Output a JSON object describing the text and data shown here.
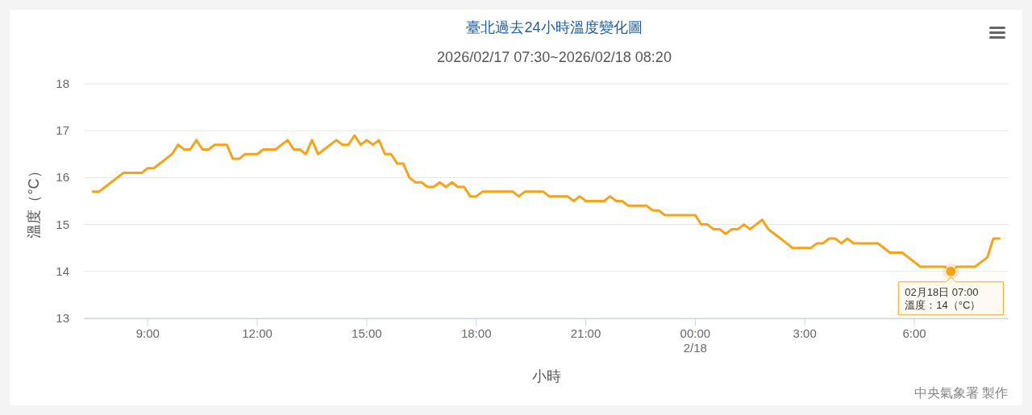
{
  "chart_data": {
    "type": "line",
    "title": "臺北過去24小時溫度變化圖",
    "subtitle": "2026/02/17 07:30~2026/02/18 08:20",
    "xlabel": "小時",
    "ylabel": "溫度（°C）",
    "x": [
      "2026-02-17T07:30",
      "2026-02-17T07:40",
      "2026-02-17T07:50",
      "2026-02-17T08:00",
      "2026-02-17T08:10",
      "2026-02-17T08:20",
      "2026-02-17T08:30",
      "2026-02-17T08:40",
      "2026-02-17T08:50",
      "2026-02-17T09:00",
      "2026-02-17T09:10",
      "2026-02-17T09:20",
      "2026-02-17T09:30",
      "2026-02-17T09:40",
      "2026-02-17T09:50",
      "2026-02-17T10:00",
      "2026-02-17T10:10",
      "2026-02-17T10:20",
      "2026-02-17T10:30",
      "2026-02-17T10:40",
      "2026-02-17T10:50",
      "2026-02-17T11:00",
      "2026-02-17T11:10",
      "2026-02-17T11:20",
      "2026-02-17T11:30",
      "2026-02-17T11:40",
      "2026-02-17T11:50",
      "2026-02-17T12:00",
      "2026-02-17T12:10",
      "2026-02-17T12:20",
      "2026-02-17T12:30",
      "2026-02-17T12:40",
      "2026-02-17T12:50",
      "2026-02-17T13:00",
      "2026-02-17T13:10",
      "2026-02-17T13:20",
      "2026-02-17T13:30",
      "2026-02-17T13:40",
      "2026-02-17T13:50",
      "2026-02-17T14:00",
      "2026-02-17T14:10",
      "2026-02-17T14:20",
      "2026-02-17T14:30",
      "2026-02-17T14:40",
      "2026-02-17T14:50",
      "2026-02-17T15:00",
      "2026-02-17T15:10",
      "2026-02-17T15:20",
      "2026-02-17T15:30",
      "2026-02-17T15:40",
      "2026-02-17T15:50",
      "2026-02-17T16:00",
      "2026-02-17T16:10",
      "2026-02-17T16:20",
      "2026-02-17T16:30",
      "2026-02-17T16:40",
      "2026-02-17T16:50",
      "2026-02-17T17:00",
      "2026-02-17T17:10",
      "2026-02-17T17:20",
      "2026-02-17T17:30",
      "2026-02-17T17:40",
      "2026-02-17T17:50",
      "2026-02-17T18:00",
      "2026-02-17T18:10",
      "2026-02-17T18:20",
      "2026-02-17T18:30",
      "2026-02-17T18:40",
      "2026-02-17T18:50",
      "2026-02-17T19:00",
      "2026-02-17T19:10",
      "2026-02-17T19:20",
      "2026-02-17T19:30",
      "2026-02-17T19:40",
      "2026-02-17T19:50",
      "2026-02-17T20:00",
      "2026-02-17T20:10",
      "2026-02-17T20:20",
      "2026-02-17T20:30",
      "2026-02-17T20:40",
      "2026-02-17T20:50",
      "2026-02-17T21:00",
      "2026-02-17T21:10",
      "2026-02-17T21:20",
      "2026-02-17T21:30",
      "2026-02-17T21:40",
      "2026-02-17T21:50",
      "2026-02-17T22:00",
      "2026-02-17T22:10",
      "2026-02-17T22:20",
      "2026-02-17T22:30",
      "2026-02-17T22:40",
      "2026-02-17T22:50",
      "2026-02-17T23:00",
      "2026-02-17T23:10",
      "2026-02-17T23:20",
      "2026-02-17T23:30",
      "2026-02-17T23:40",
      "2026-02-17T23:50",
      "2026-02-18T00:00",
      "2026-02-18T00:10",
      "2026-02-18T00:20",
      "2026-02-18T00:30",
      "2026-02-18T00:40",
      "2026-02-18T00:50",
      "2026-02-18T01:00",
      "2026-02-18T01:10",
      "2026-02-18T01:20",
      "2026-02-18T01:30",
      "2026-02-18T01:40",
      "2026-02-18T01:50",
      "2026-02-18T02:00",
      "2026-02-18T02:10",
      "2026-02-18T02:20",
      "2026-02-18T02:30",
      "2026-02-18T02:40",
      "2026-02-18T02:50",
      "2026-02-18T03:00",
      "2026-02-18T03:10",
      "2026-02-18T03:20",
      "2026-02-18T03:30",
      "2026-02-18T03:40",
      "2026-02-18T03:50",
      "2026-02-18T04:00",
      "2026-02-18T04:10",
      "2026-02-18T04:20",
      "2026-02-18T04:30",
      "2026-02-18T04:40",
      "2026-02-18T04:50",
      "2026-02-18T05:00",
      "2026-02-18T05:10",
      "2026-02-18T05:20",
      "2026-02-18T05:30",
      "2026-02-18T05:40",
      "2026-02-18T05:50",
      "2026-02-18T06:00",
      "2026-02-18T06:10",
      "2026-02-18T06:20",
      "2026-02-18T06:30",
      "2026-02-18T06:40",
      "2026-02-18T06:50",
      "2026-02-18T07:00",
      "2026-02-18T07:10",
      "2026-02-18T07:20",
      "2026-02-18T07:30",
      "2026-02-18T07:40",
      "2026-02-18T07:50",
      "2026-02-18T08:00",
      "2026-02-18T08:10",
      "2026-02-18T08:20"
    ],
    "series": [
      {
        "color": "#f5a31a",
        "values": [
          15.7,
          15.7,
          15.8,
          15.9,
          16.0,
          16.1,
          16.1,
          16.1,
          16.1,
          16.2,
          16.2,
          16.3,
          16.4,
          16.5,
          16.7,
          16.6,
          16.6,
          16.8,
          16.6,
          16.6,
          16.7,
          16.7,
          16.7,
          16.4,
          16.4,
          16.5,
          16.5,
          16.5,
          16.6,
          16.6,
          16.6,
          16.7,
          16.8,
          16.6,
          16.6,
          16.5,
          16.8,
          16.5,
          16.6,
          16.7,
          16.8,
          16.7,
          16.7,
          16.9,
          16.7,
          16.8,
          16.7,
          16.8,
          16.5,
          16.5,
          16.3,
          16.3,
          16.0,
          15.9,
          15.9,
          15.8,
          15.8,
          15.9,
          15.8,
          15.9,
          15.8,
          15.8,
          15.6,
          15.6,
          15.7,
          15.7,
          15.7,
          15.7,
          15.7,
          15.7,
          15.6,
          15.7,
          15.7,
          15.7,
          15.7,
          15.6,
          15.6,
          15.6,
          15.6,
          15.5,
          15.6,
          15.5,
          15.5,
          15.5,
          15.5,
          15.6,
          15.5,
          15.5,
          15.4,
          15.4,
          15.4,
          15.4,
          15.3,
          15.3,
          15.2,
          15.2,
          15.2,
          15.2,
          15.2,
          15.2,
          15.0,
          15.0,
          14.9,
          14.9,
          14.8,
          14.9,
          14.9,
          15.0,
          14.9,
          15.0,
          15.1,
          14.9,
          14.8,
          14.7,
          14.6,
          14.5,
          14.5,
          14.5,
          14.5,
          14.6,
          14.6,
          14.7,
          14.7,
          14.6,
          14.7,
          14.6,
          14.6,
          14.6,
          14.6,
          14.6,
          14.5,
          14.4,
          14.4,
          14.4,
          14.3,
          14.2,
          14.1,
          14.1,
          14.1,
          14.1,
          14.1,
          14.0,
          14.1,
          14.1,
          14.1,
          14.1,
          14.2,
          14.3,
          14.7,
          14.7
        ]
      }
    ],
    "xlim": [
      "2026-02-17T07:15",
      "2026-02-18T08:35"
    ],
    "xticks": [
      {
        "value": "2026-02-17T09:00",
        "label": "9:00"
      },
      {
        "value": "2026-02-17T12:00",
        "label": "12:00"
      },
      {
        "value": "2026-02-17T15:00",
        "label": "15:00"
      },
      {
        "value": "2026-02-17T18:00",
        "label": "18:00"
      },
      {
        "value": "2026-02-17T21:00",
        "label": "21:00"
      },
      {
        "value": "2026-02-18T00:00",
        "label": "00:00\n2/18"
      },
      {
        "value": "2026-02-18T03:00",
        "label": "3:00"
      },
      {
        "value": "2026-02-18T06:00",
        "label": "6:00"
      }
    ],
    "ylim": [
      13,
      18
    ],
    "yticks": [
      13,
      14,
      15,
      16,
      17,
      18
    ],
    "grid": "y",
    "marker": "none",
    "line_style": "solid",
    "annotations": [
      {
        "text": "02月18日 07:00\n溫度：14（°C）",
        "x": "2026-02-18T07:00",
        "y": 14
      },
      "中央氣象署 製作"
    ]
  }
}
